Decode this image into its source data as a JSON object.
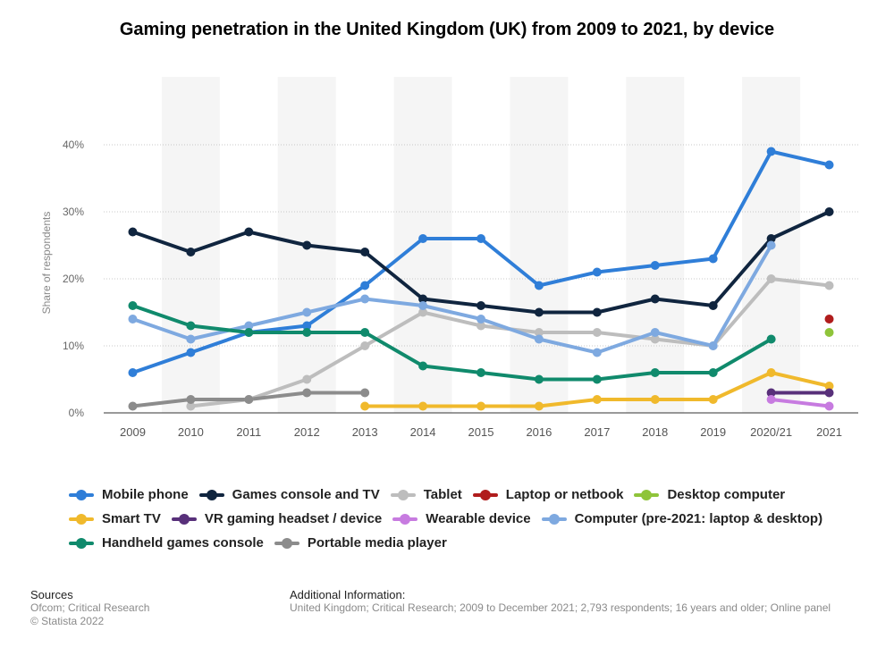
{
  "title": "Gaming penetration in the United Kingdom (UK) from 2009 to 2021, by device",
  "chart_data": {
    "type": "line",
    "title": "Gaming penetration in the United Kingdom (UK) from 2009 to 2021, by device",
    "ylabel": "Share of respondents",
    "xlabel": "",
    "categories": [
      "2009",
      "2010",
      "2011",
      "2012",
      "2013",
      "2014",
      "2015",
      "2016",
      "2017",
      "2018",
      "2019",
      "2020/21",
      "2021"
    ],
    "yticks": [
      "0%",
      "10%",
      "20%",
      "30%",
      "40%"
    ],
    "ylim": [
      0,
      40
    ],
    "grid": "horizontal dotted",
    "legend_position": "bottom",
    "series": [
      {
        "name": "Mobile phone",
        "color": "#2f7ed8",
        "values": [
          6,
          9,
          12,
          13,
          19,
          26,
          26,
          19,
          21,
          22,
          23,
          39,
          37
        ]
      },
      {
        "name": "Games console and TV",
        "color": "#10253f",
        "values": [
          27,
          24,
          27,
          25,
          24,
          17,
          16,
          15,
          15,
          17,
          16,
          26,
          30
        ]
      },
      {
        "name": "Tablet",
        "color": "#bdbdbd",
        "values": [
          null,
          1,
          2,
          5,
          10,
          15,
          13,
          12,
          12,
          11,
          10,
          20,
          19
        ]
      },
      {
        "name": "Laptop or netbook",
        "color": "#b01c1c",
        "values": [
          null,
          null,
          null,
          null,
          null,
          null,
          null,
          null,
          null,
          null,
          null,
          null,
          14
        ]
      },
      {
        "name": "Desktop computer",
        "color": "#8fc43a",
        "values": [
          null,
          null,
          null,
          null,
          null,
          null,
          null,
          null,
          null,
          null,
          null,
          null,
          12
        ]
      },
      {
        "name": "Smart TV",
        "color": "#f0b92c",
        "values": [
          null,
          null,
          null,
          null,
          1,
          1,
          1,
          1,
          2,
          2,
          2,
          6,
          4
        ]
      },
      {
        "name": "VR gaming headset / device",
        "color": "#58307a",
        "values": [
          null,
          null,
          null,
          null,
          null,
          null,
          null,
          null,
          null,
          null,
          null,
          3,
          3
        ]
      },
      {
        "name": "Wearable device",
        "color": "#c77be0",
        "values": [
          null,
          null,
          null,
          null,
          null,
          null,
          null,
          null,
          null,
          null,
          null,
          2,
          1
        ]
      },
      {
        "name": "Computer (pre-2021: laptop & desktop)",
        "color": "#7ea9e0",
        "values": [
          14,
          11,
          13,
          15,
          17,
          16,
          14,
          11,
          9,
          12,
          10,
          25,
          null
        ]
      },
      {
        "name": "Handheld games console",
        "color": "#108a6c",
        "values": [
          16,
          13,
          12,
          12,
          12,
          7,
          6,
          5,
          5,
          6,
          6,
          11,
          null
        ]
      },
      {
        "name": "Portable media player",
        "color": "#8c8c8c",
        "values": [
          1,
          2,
          2,
          3,
          3,
          null,
          null,
          null,
          null,
          null,
          null,
          null,
          null
        ]
      }
    ]
  },
  "legend": {
    "rows": [
      [
        0,
        1,
        2,
        3,
        4
      ],
      [
        5,
        6,
        7,
        8
      ],
      [
        9,
        10
      ]
    ]
  },
  "sources": {
    "heading": "Sources",
    "line1": "Ofcom; Critical Research",
    "line2": "© Statista 2022"
  },
  "additional_info": {
    "heading": "Additional Information:",
    "text": "United Kingdom; Critical Research; 2009 to December 2021; 2,793 respondents; 16 years and older; Online panel"
  }
}
